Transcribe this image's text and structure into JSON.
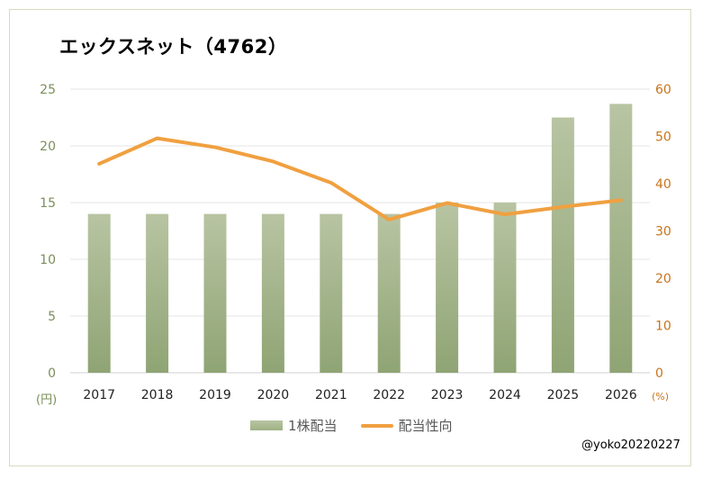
{
  "chart_data": {
    "type": "bar",
    "title": "エックスネット（4762）",
    "categories": [
      "2017",
      "2018",
      "2019",
      "2020",
      "2021",
      "2022",
      "2023",
      "2024",
      "2025",
      "2026"
    ],
    "series": [
      {
        "name": "1株配当",
        "type": "bar",
        "axis": "left",
        "values": [
          14,
          14,
          14,
          14,
          14,
          14,
          15,
          15,
          22.5,
          23.7
        ]
      },
      {
        "name": "配当性向",
        "type": "line",
        "axis": "right",
        "values": [
          44.2,
          49.6,
          47.7,
          44.7,
          40.2,
          32.4,
          35.9,
          33.5,
          35.1,
          36.5
        ]
      }
    ],
    "y_left": {
      "ylim": [
        0,
        25
      ],
      "ticks": [
        "0",
        "5",
        "10",
        "15",
        "20",
        "25"
      ],
      "unit": "(円)"
    },
    "y_right": {
      "ylim": [
        0,
        60
      ],
      "ticks": [
        "0",
        "10",
        "20",
        "30",
        "40",
        "50",
        "60"
      ],
      "unit": "(%)"
    },
    "grid": true,
    "legend_position": "bottom",
    "colors": {
      "bar_top": "#b8c4a2",
      "bar_bottom": "#8fa474",
      "line": "#f0a040",
      "left_axis_text": "#7b8f5a",
      "right_axis_text": "#c8741c",
      "grid": "#e4e4e4"
    }
  },
  "credit": "@yoko20220227"
}
